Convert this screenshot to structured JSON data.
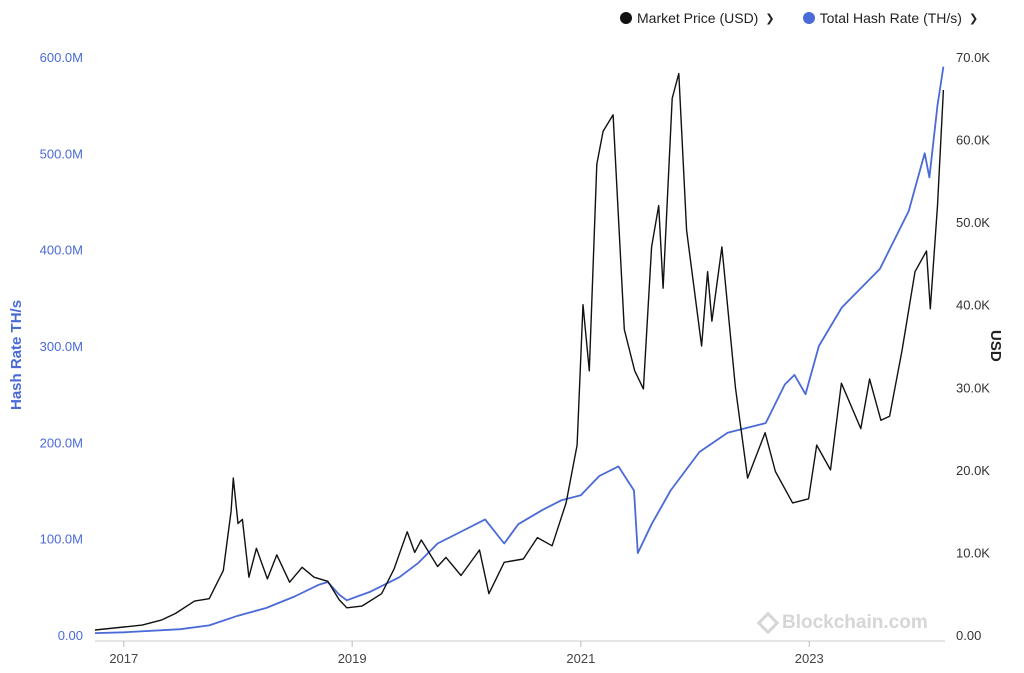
{
  "legend": [
    {
      "label": "Market Price (USD)",
      "color": "#111111",
      "chevron": "chevron-down-icon"
    },
    {
      "label": "Total Hash Rate (TH/s)",
      "color": "#4a6ad8",
      "chevron": "chevron-down-icon"
    }
  ],
  "watermark": "Blockchain.com",
  "chart_data": {
    "type": "line",
    "x_ticks": [
      "2017",
      "2019",
      "2021",
      "2023"
    ],
    "x_range": [
      "2016-10-01",
      "2024-03-10"
    ],
    "y_left": {
      "label": "Hash Rate TH/s",
      "ticks": [
        "0.00",
        "100.0M",
        "200.0M",
        "300.0M",
        "400.0M",
        "500.0M",
        "600.0M"
      ],
      "range": [
        0,
        600000000
      ],
      "color": "#4a6ad8"
    },
    "y_right": {
      "label": "USD",
      "ticks": [
        "0.00",
        "10.0K",
        "20.0K",
        "30.0K",
        "40.0K",
        "50.0K",
        "60.0K",
        "70.0K"
      ],
      "range": [
        0,
        70000
      ],
      "color": "#333333"
    },
    "grid": true,
    "legend_position": "top-right",
    "series": [
      {
        "name": "Market Price (USD)",
        "axis": "right",
        "color": "#111111",
        "points": [
          [
            "2016-10-01",
            610
          ],
          [
            "2017-01-01",
            970
          ],
          [
            "2017-03-01",
            1200
          ],
          [
            "2017-05-01",
            1800
          ],
          [
            "2017-06-15",
            2600
          ],
          [
            "2017-08-15",
            4100
          ],
          [
            "2017-10-01",
            4400
          ],
          [
            "2017-11-15",
            7800
          ],
          [
            "2017-12-10",
            15000
          ],
          [
            "2017-12-17",
            19000
          ],
          [
            "2018-01-01",
            13500
          ],
          [
            "2018-01-15",
            14000
          ],
          [
            "2018-02-05",
            7000
          ],
          [
            "2018-03-01",
            10500
          ],
          [
            "2018-04-05",
            6800
          ],
          [
            "2018-05-05",
            9700
          ],
          [
            "2018-06-15",
            6400
          ],
          [
            "2018-07-25",
            8200
          ],
          [
            "2018-09-01",
            7000
          ],
          [
            "2018-10-15",
            6500
          ],
          [
            "2018-11-20",
            4300
          ],
          [
            "2018-12-15",
            3300
          ],
          [
            "2019-02-01",
            3500
          ],
          [
            "2019-04-05",
            5000
          ],
          [
            "2019-05-15",
            8000
          ],
          [
            "2019-06-26",
            12500
          ],
          [
            "2019-07-20",
            10000
          ],
          [
            "2019-08-10",
            11500
          ],
          [
            "2019-10-01",
            8300
          ],
          [
            "2019-10-28",
            9400
          ],
          [
            "2019-12-15",
            7200
          ],
          [
            "2020-02-12",
            10300
          ],
          [
            "2020-03-13",
            5000
          ],
          [
            "2020-05-01",
            8800
          ],
          [
            "2020-07-01",
            9200
          ],
          [
            "2020-08-15",
            11800
          ],
          [
            "2020-10-01",
            10800
          ],
          [
            "2020-11-15",
            16000
          ],
          [
            "2020-12-20",
            23000
          ],
          [
            "2021-01-08",
            40000
          ],
          [
            "2021-01-28",
            32000
          ],
          [
            "2021-02-21",
            57000
          ],
          [
            "2021-03-13",
            61000
          ],
          [
            "2021-04-14",
            63000
          ],
          [
            "2021-05-20",
            37000
          ],
          [
            "2021-06-22",
            32000
          ],
          [
            "2021-07-20",
            29800
          ],
          [
            "2021-08-15",
            47000
          ],
          [
            "2021-09-07",
            52000
          ],
          [
            "2021-09-21",
            42000
          ],
          [
            "2021-10-20",
            65000
          ],
          [
            "2021-11-10",
            68000
          ],
          [
            "2021-12-05",
            49000
          ],
          [
            "2022-01-22",
            35000
          ],
          [
            "2022-02-10",
            44000
          ],
          [
            "2022-02-24",
            38000
          ],
          [
            "2022-03-28",
            47000
          ],
          [
            "2022-05-10",
            30000
          ],
          [
            "2022-06-18",
            19000
          ],
          [
            "2022-08-13",
            24500
          ],
          [
            "2022-09-15",
            19800
          ],
          [
            "2022-11-09",
            16000
          ],
          [
            "2022-12-30",
            16500
          ],
          [
            "2023-01-25",
            23000
          ],
          [
            "2023-03-10",
            20000
          ],
          [
            "2023-04-14",
            30500
          ],
          [
            "2023-06-15",
            25000
          ],
          [
            "2023-07-13",
            31000
          ],
          [
            "2023-08-18",
            26000
          ],
          [
            "2023-09-15",
            26500
          ],
          [
            "2023-10-25",
            34500
          ],
          [
            "2023-12-05",
            44000
          ],
          [
            "2024-01-11",
            46500
          ],
          [
            "2024-01-23",
            39500
          ],
          [
            "2024-02-15",
            52000
          ],
          [
            "2024-03-05",
            66000
          ]
        ]
      },
      {
        "name": "Total Hash Rate (TH/s)",
        "axis": "left",
        "color": "#4a6ad8",
        "points": [
          [
            "2016-10-01",
            2000000
          ],
          [
            "2017-01-01",
            2800000
          ],
          [
            "2017-07-01",
            6000000
          ],
          [
            "2017-10-01",
            10000000
          ],
          [
            "2018-01-01",
            20000000
          ],
          [
            "2018-04-01",
            28000000
          ],
          [
            "2018-07-01",
            40000000
          ],
          [
            "2018-09-15",
            52000000
          ],
          [
            "2018-10-15",
            55000000
          ],
          [
            "2018-11-20",
            42000000
          ],
          [
            "2018-12-15",
            36000000
          ],
          [
            "2019-03-01",
            45000000
          ],
          [
            "2019-06-01",
            60000000
          ],
          [
            "2019-08-01",
            75000000
          ],
          [
            "2019-10-01",
            95000000
          ],
          [
            "2020-01-01",
            110000000
          ],
          [
            "2020-03-01",
            120000000
          ],
          [
            "2020-05-01",
            95000000
          ],
          [
            "2020-06-15",
            115000000
          ],
          [
            "2020-09-01",
            130000000
          ],
          [
            "2020-11-01",
            140000000
          ],
          [
            "2021-01-01",
            145000000
          ],
          [
            "2021-03-01",
            165000000
          ],
          [
            "2021-05-01",
            175000000
          ],
          [
            "2021-06-20",
            150000000
          ],
          [
            "2021-07-02",
            85000000
          ],
          [
            "2021-08-15",
            115000000
          ],
          [
            "2021-10-15",
            150000000
          ],
          [
            "2022-01-15",
            190000000
          ],
          [
            "2022-04-15",
            210000000
          ],
          [
            "2022-06-15",
            215000000
          ],
          [
            "2022-08-15",
            220000000
          ],
          [
            "2022-10-15",
            260000000
          ],
          [
            "2022-11-15",
            270000000
          ],
          [
            "2022-12-20",
            250000000
          ],
          [
            "2023-02-01",
            300000000
          ],
          [
            "2023-04-15",
            340000000
          ],
          [
            "2023-06-15",
            360000000
          ],
          [
            "2023-08-15",
            380000000
          ],
          [
            "2023-11-15",
            440000000
          ],
          [
            "2024-01-05",
            500000000
          ],
          [
            "2024-01-20",
            475000000
          ],
          [
            "2024-02-15",
            550000000
          ],
          [
            "2024-03-05",
            590000000
          ]
        ]
      }
    ]
  }
}
